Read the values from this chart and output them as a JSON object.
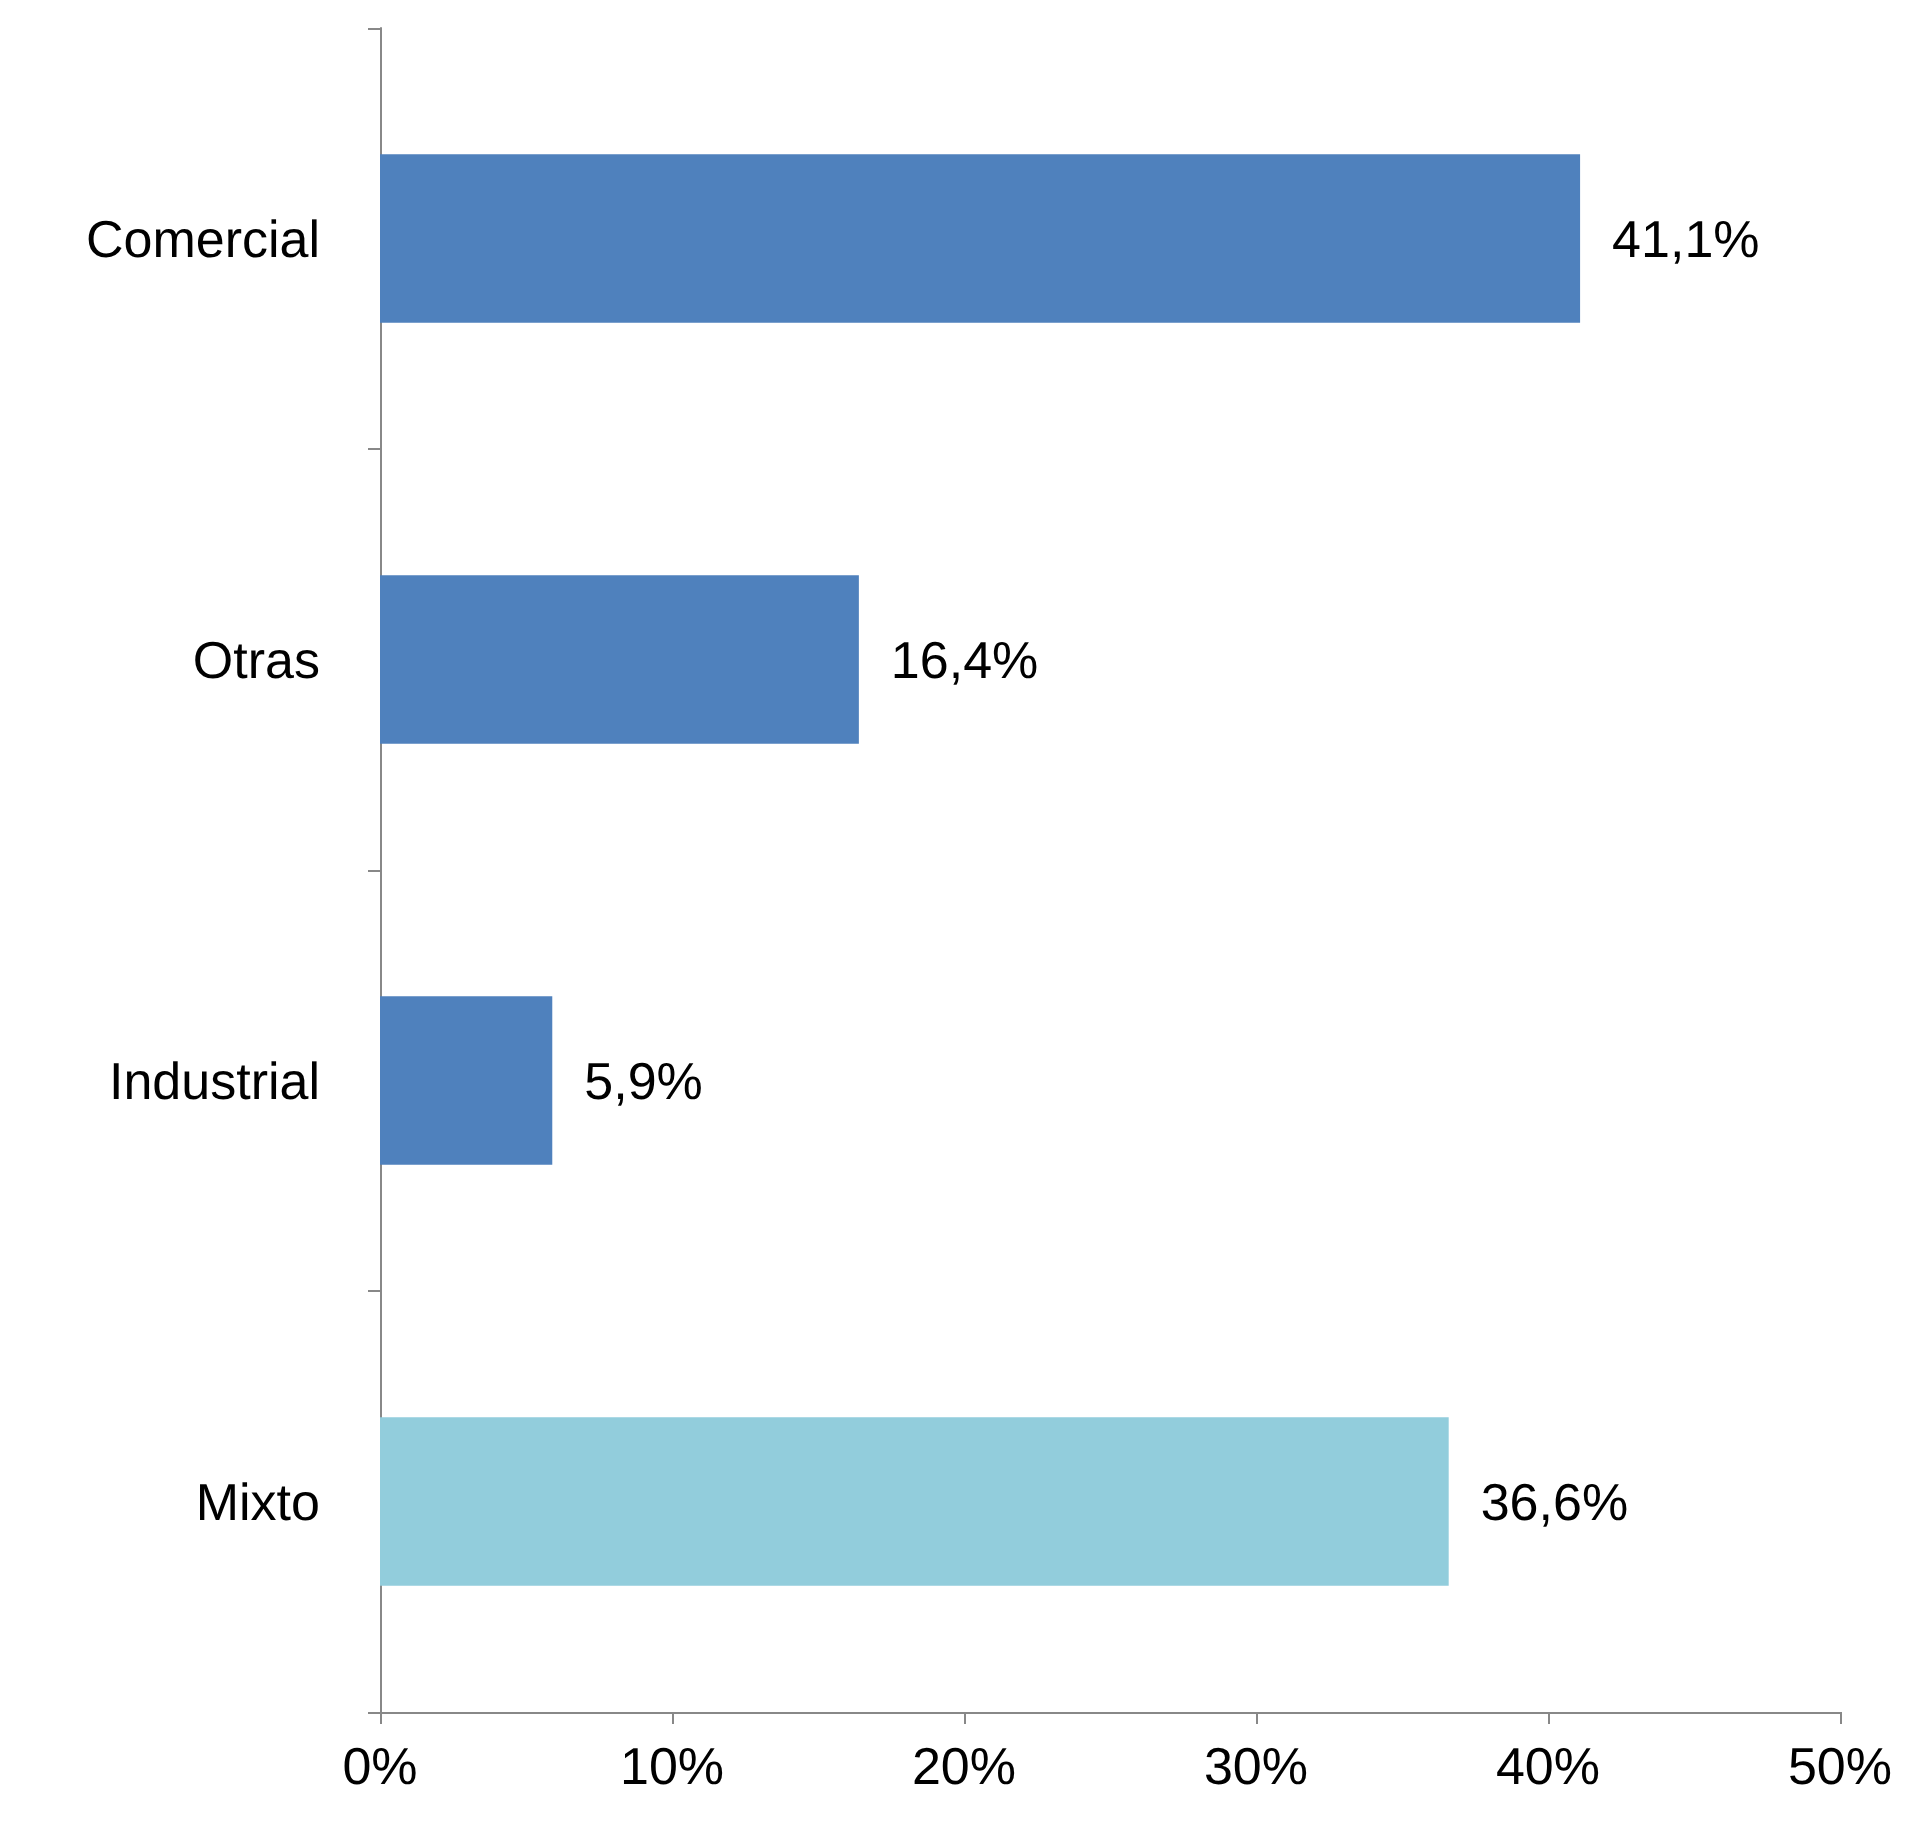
{
  "chart_data": {
    "type": "bar",
    "orientation": "horizontal",
    "categories": [
      "Comercial",
      "Otras",
      "Industrial",
      "Mixto"
    ],
    "values": [
      41.1,
      16.4,
      5.9,
      36.6
    ],
    "colors": [
      "#4f81bd",
      "#4f81bd",
      "#4f81bd",
      "#92cddc"
    ],
    "value_labels": [
      "41,1%",
      "16,4%",
      "5,9%",
      "36,6%"
    ],
    "xlim": [
      0,
      50
    ],
    "xticks": [
      {
        "value": 0,
        "label": "0%"
      },
      {
        "value": 10,
        "label": "10%"
      },
      {
        "value": 20,
        "label": "20%"
      },
      {
        "value": 30,
        "label": "30%"
      },
      {
        "value": 40,
        "label": "40%"
      },
      {
        "value": 50,
        "label": "50%"
      }
    ]
  }
}
